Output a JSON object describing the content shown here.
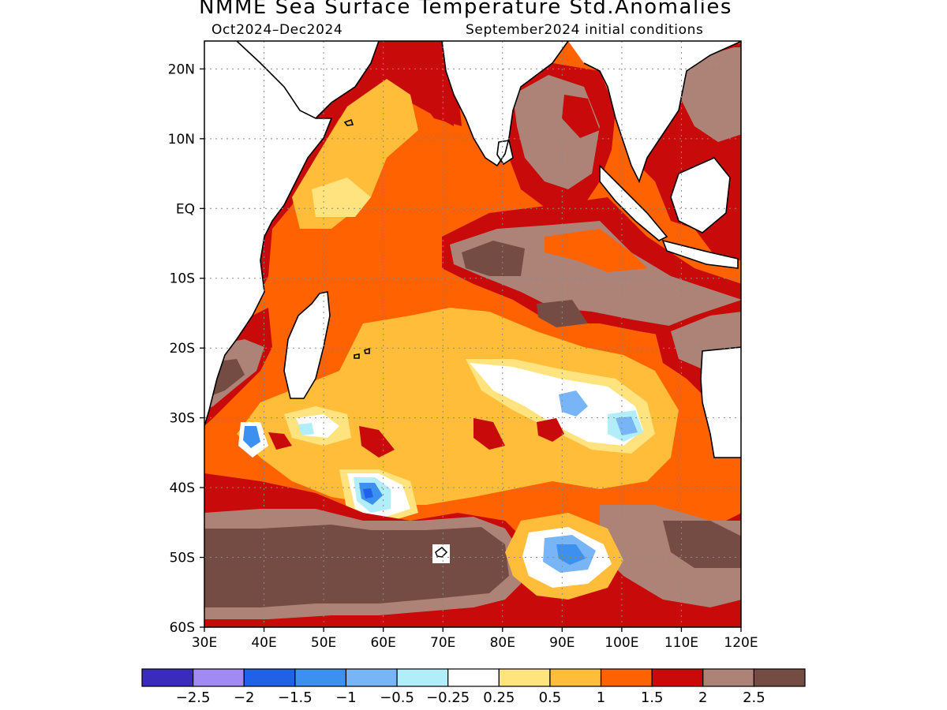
{
  "title": "NMME Sea Surface Temperature Std.Anomalies",
  "subtitle_left": "Oct2024–Dec2024",
  "subtitle_right": "September2024 initial conditions",
  "map": {
    "lon_range": [
      30,
      120
    ],
    "lat_range": [
      -60,
      24
    ],
    "lat_ticks": [
      {
        "value": 20,
        "label": "20N"
      },
      {
        "value": 10,
        "label": "10N"
      },
      {
        "value": 0,
        "label": "EQ"
      },
      {
        "value": -10,
        "label": "10S"
      },
      {
        "value": -20,
        "label": "20S"
      },
      {
        "value": -30,
        "label": "30S"
      },
      {
        "value": -40,
        "label": "40S"
      },
      {
        "value": -50,
        "label": "50S"
      },
      {
        "value": -60,
        "label": "60S"
      }
    ],
    "lon_ticks": [
      {
        "value": 30,
        "label": "30E"
      },
      {
        "value": 40,
        "label": "40E"
      },
      {
        "value": 50,
        "label": "50E"
      },
      {
        "value": 60,
        "label": "60E"
      },
      {
        "value": 70,
        "label": "70E"
      },
      {
        "value": 80,
        "label": "80E"
      },
      {
        "value": 90,
        "label": "90E"
      },
      {
        "value": 100,
        "label": "100E"
      },
      {
        "value": 110,
        "label": "110E"
      },
      {
        "value": 120,
        "label": "120E"
      }
    ],
    "grid": true
  },
  "colorbar": {
    "colors": [
      "#3a2bbd",
      "#a28af5",
      "#1f62e8",
      "#3c91f0",
      "#78b5f7",
      "#b2eefa",
      "#ffffff",
      "#ffe37e",
      "#ffbd3a",
      "#ff6200",
      "#c80a0a",
      "#ad8377",
      "#754c43"
    ],
    "labels": [
      "−2.5",
      "−2",
      "−1.5",
      "−1",
      "−0.5",
      "−0.25",
      "0.25",
      "0.5",
      "1",
      "1.5",
      "2",
      "2.5"
    ]
  }
}
